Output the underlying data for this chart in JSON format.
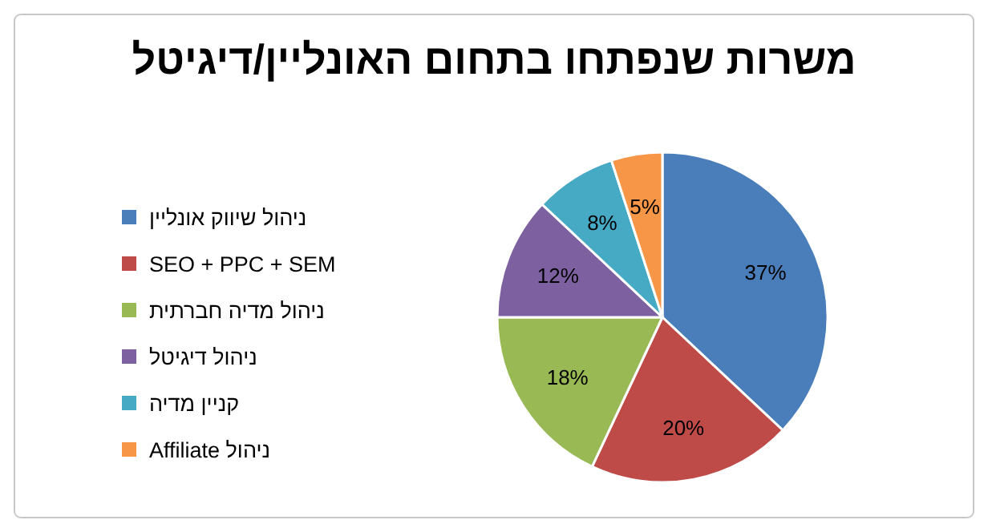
{
  "chart_data": {
    "type": "pie",
    "title": "משרות שנפתחו בתחום האונליין/דיגיטל",
    "categories": [
      "ניהול שיווק אונליין",
      "SEO + PPC + SEM",
      "ניהול מדיה חברתית",
      "ניהול דיגיטל",
      "קניין מדיה",
      "ניהול Affiliate"
    ],
    "values": [
      37,
      20,
      18,
      12,
      8,
      5
    ],
    "colors": [
      "#4a7ebb",
      "#be4b48",
      "#98b954",
      "#7d60a0",
      "#46aac5",
      "#f79646"
    ],
    "value_labels": [
      "37%",
      "20%",
      "18%",
      "12%",
      "8%",
      "5%"
    ],
    "legend": "left"
  }
}
